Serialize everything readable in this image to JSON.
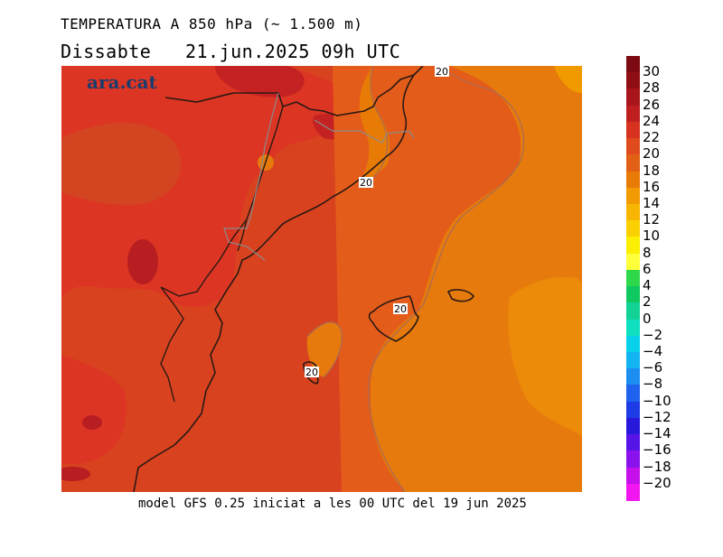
{
  "header": {
    "title": "TEMPERATURA A 850 hPa (~ 1.500 m)",
    "subtitle": "Dissabte   21.jun.2025 09h UTC"
  },
  "map": {
    "watermark": "ara.cat",
    "contour_labels": [
      "20",
      "20",
      "20",
      "20"
    ]
  },
  "footer": {
    "text": "model GFS 0.25 iniciat a les 00 UTC del 19 jun 2025"
  },
  "legend": {
    "labels": [
      "30",
      "28",
      "26",
      "24",
      "22",
      "20",
      "18",
      "16",
      "14",
      "12",
      "10",
      "8",
      "6",
      "4",
      "2",
      "0",
      "−2",
      "−4",
      "−6",
      "−8",
      "−10",
      "−12",
      "−14",
      "−16",
      "−18",
      "−20"
    ],
    "colors": [
      "#7d0a12",
      "#8f0f14",
      "#a8151a",
      "#bf1f1f",
      "#d7321f",
      "#e04b1e",
      "#e26016",
      "#e87b06",
      "#f29a00",
      "#f7b500",
      "#fbd000",
      "#fbee00",
      "#ffff3a",
      "#2ed84a",
      "#10c860",
      "#12d296",
      "#0ee0c0",
      "#08d2ea",
      "#12b4f2",
      "#1c8ef2",
      "#1e62ee",
      "#1e3ce6",
      "#2818dc",
      "#5614e8",
      "#8a12ec",
      "#c610ec",
      "#f216f0"
    ]
  },
  "colors": {
    "temp_20_22": "#d9421f",
    "temp_22_24": "#dc3523",
    "temp_24_26": "#c42222",
    "temp_18_20": "#e45c1a",
    "temp_16_18": "#e67a0c"
  }
}
